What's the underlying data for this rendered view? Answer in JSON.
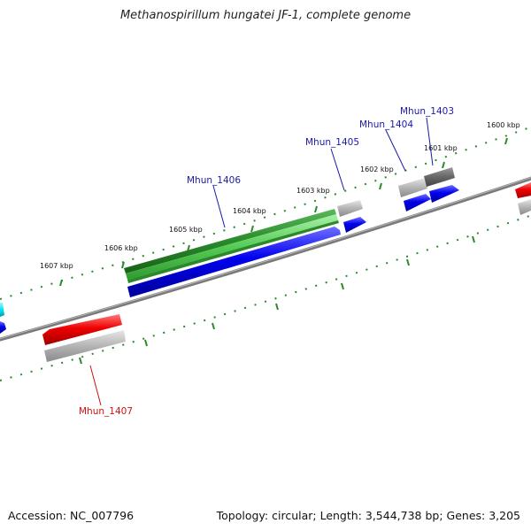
{
  "title": "Methanospirillum hungatei JF-1, complete genome",
  "accession": "Accession: NC_007796",
  "stats": "Topology: circular; Length: 3,544,738 bp; Genes: 3,205",
  "ticks": [
    {
      "label": "1600 kbp"
    },
    {
      "label": "1601 kbp"
    },
    {
      "label": "1602 kbp"
    },
    {
      "label": "1603 kbp"
    },
    {
      "label": "1604 kbp"
    },
    {
      "label": "1605 kbp"
    },
    {
      "label": "1606 kbp"
    },
    {
      "label": "1607 kbp"
    }
  ],
  "genes": [
    {
      "name": "Mhun_1403",
      "color": "#1a1aaa"
    },
    {
      "name": "Mhun_1404",
      "color": "#1a1aaa"
    },
    {
      "name": "Mhun_1405",
      "color": "#1a1aaa"
    },
    {
      "name": "Mhun_1406",
      "color": "#1a1aaa"
    },
    {
      "name": "Mhun_1407",
      "color": "#cc1111"
    }
  ],
  "colors": {
    "backbone": "#777777",
    "tick_mark": "#2a8a2a",
    "forward_cds": "#0000ee",
    "reverse_cds": "#ee0000",
    "gene_feature": "#2e9e2e",
    "pseudo_gray": "#b0b0b0",
    "dark_gray": "#6a6a6a",
    "cyan": "#00e5ee"
  }
}
